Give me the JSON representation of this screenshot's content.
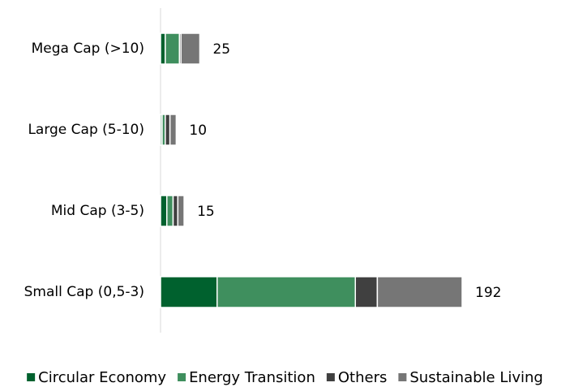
{
  "chart_data": {
    "type": "stacked-bar-horizontal",
    "categories": [
      "Mega Cap (>10)",
      "Large Cap (5-10)",
      "Mid Cap (3-5)",
      "Small Cap (0,5-3)"
    ],
    "series": [
      {
        "name": "Circular Economy",
        "color": "#00612e",
        "values": [
          3,
          1,
          4,
          36
        ]
      },
      {
        "name": "Energy Transition",
        "color": "#3f8f5e",
        "values": [
          9,
          2,
          4,
          88
        ]
      },
      {
        "name": "Others",
        "color": "#404040",
        "values": [
          1,
          3,
          3,
          14
        ]
      },
      {
        "name": "Sustainable Living",
        "color": "#767676",
        "values": [
          12,
          4,
          4,
          54
        ]
      }
    ],
    "totals": [
      25,
      10,
      15,
      192
    ],
    "legend": "bottom"
  }
}
